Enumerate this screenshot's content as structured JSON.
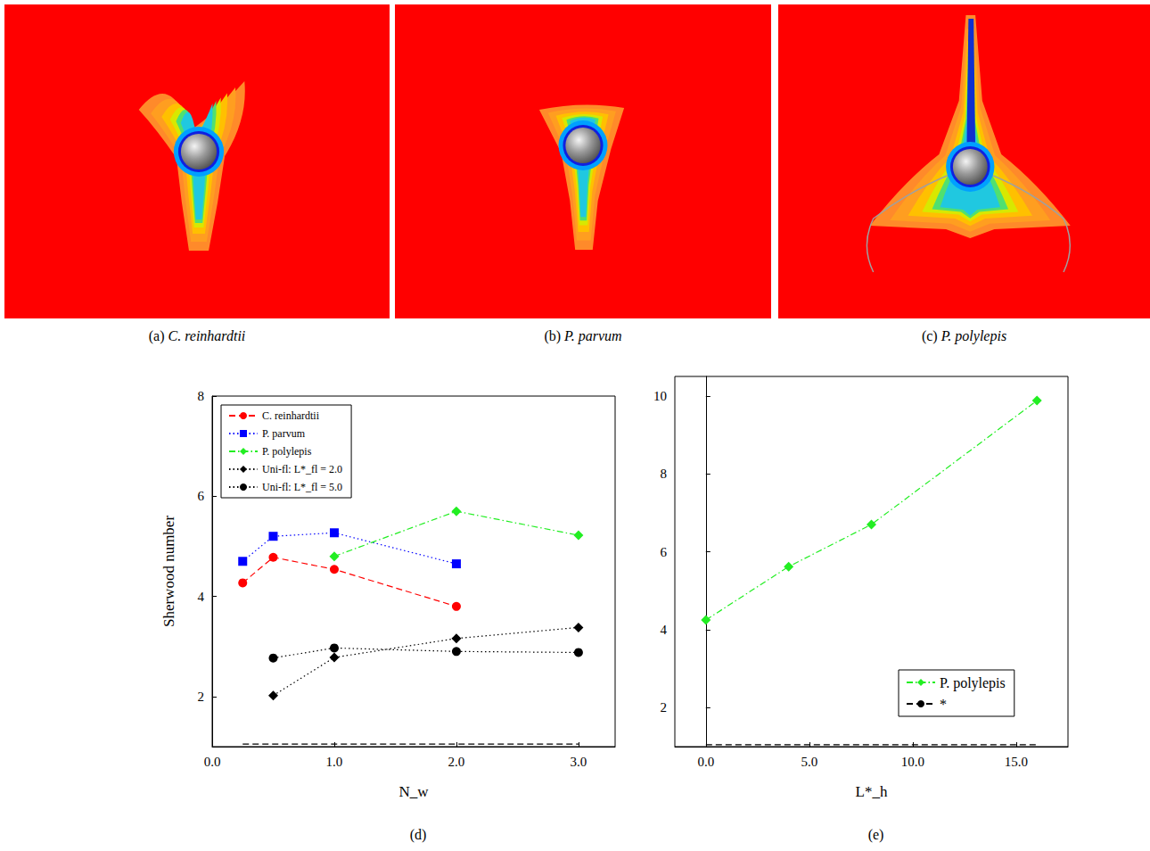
{
  "panels": [
    {
      "label": "(a)",
      "caption": "C. reinhardtii"
    },
    {
      "label": "(b)",
      "caption": "P. parvum"
    },
    {
      "label": "(c)",
      "caption": "P. polylepis"
    }
  ],
  "chart_data": [
    {
      "type": "line",
      "title": "(d)",
      "x_label": "N_w",
      "y_label": "Sherwood number",
      "xlim": [
        0,
        3.3
      ],
      "xticks": [
        {
          "value": 0,
          "label": "0.0"
        },
        {
          "value": 1,
          "label": "1.0"
        },
        {
          "value": 2,
          "label": "2.0"
        },
        {
          "value": 3,
          "label": "3.0"
        }
      ],
      "ylim": [
        1,
        8
      ],
      "yticks": [
        2,
        4,
        6,
        8
      ],
      "grid": false,
      "legend": "upper left",
      "series": [
        {
          "name": "C. reinhardtii",
          "color": "#ff0000",
          "marker": "circle",
          "line_style": "dashed",
          "x": [
            0.25,
            0.5,
            1,
            2
          ],
          "values": [
            4.27,
            4.78,
            4.54,
            3.8
          ]
        },
        {
          "name": "P. parvum",
          "color": "#0000ff",
          "marker": "square",
          "line_style": "dotted",
          "x": [
            0.25,
            0.5,
            1,
            2
          ],
          "values": [
            4.7,
            5.2,
            5.27,
            4.65
          ]
        },
        {
          "name": "P. polylepis",
          "color": "#22ee22",
          "marker": "diamond",
          "line_style": "dashdot",
          "x": [
            1,
            2,
            3
          ],
          "values": [
            4.8,
            5.7,
            5.22
          ]
        },
        {
          "name": "Uni-fl: L*_fl = 2.0",
          "color": "#000000",
          "marker": "diamond",
          "line_style": "dotted",
          "x": [
            0.5,
            1,
            2,
            3
          ],
          "values": [
            2.02,
            2.78,
            3.16,
            3.38
          ]
        },
        {
          "name": "Uni-fl: L*_fl = 5.0",
          "color": "#000000",
          "marker": "circle",
          "line_style": "dotted",
          "x": [
            0.5,
            1,
            2,
            3
          ],
          "values": [
            2.77,
            2.97,
            2.9,
            2.88
          ]
        },
        {
          "color": "#000000",
          "marker": "none",
          "line_style": "dashed",
          "x": [
            0.25,
            3
          ],
          "values": [
            1.05,
            1.05
          ]
        }
      ]
    },
    {
      "type": "line",
      "title": "(e)",
      "x_label": "L*_h",
      "xlim": [
        -1.5,
        17.5
      ],
      "xticks": [
        {
          "value": 0,
          "label": "0.0"
        },
        {
          "value": 5,
          "label": "5.0"
        },
        {
          "value": 10,
          "label": "10.0"
        },
        {
          "value": 15,
          "label": "15.0"
        }
      ],
      "ylim": [
        1,
        10.5
      ],
      "yticks": [
        2,
        4,
        6,
        8,
        10
      ],
      "grid": false,
      "legend": "lower right",
      "series": [
        {
          "name": "P. polylepis",
          "color": "#22ee22",
          "marker": "diamond",
          "line_style": "dashdot",
          "x": [
            0,
            4,
            8,
            16
          ],
          "values": [
            4.25,
            5.62,
            6.7,
            9.88
          ]
        },
        {
          "name": "*",
          "color": "#000000",
          "marker": "none",
          "line_style": "dashed",
          "x": [
            0,
            16
          ],
          "values": [
            1.05,
            1.05
          ]
        }
      ]
    }
  ]
}
